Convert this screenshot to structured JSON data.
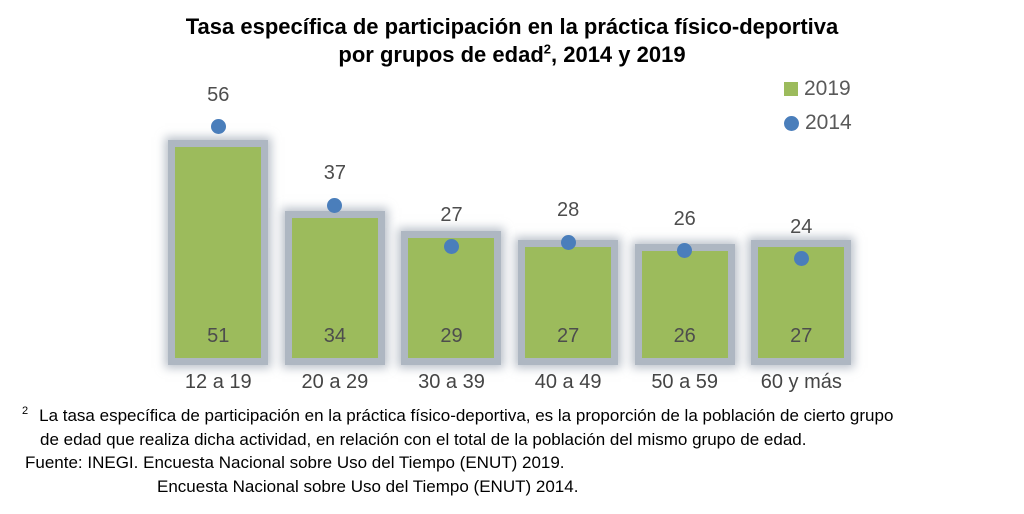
{
  "title": {
    "line1": "Tasa específica de participación en la práctica físico-deportiva",
    "line2_prefix": "por grupos de edad",
    "superscript": "2",
    "line2_suffix": ", 2014 y 2019"
  },
  "legend": {
    "items": [
      {
        "label": "2019",
        "marker": "green-square"
      },
      {
        "label": "2014",
        "marker": "blue-circle"
      }
    ]
  },
  "chart_data": {
    "type": "bar",
    "categories": [
      "12 a 19",
      "20 a 29",
      "30 a 39",
      "40 a 49",
      "50 a 59",
      "60 y más"
    ],
    "series": [
      {
        "name": "2019",
        "type": "bar",
        "color": "#9CBB5C",
        "values": [
          51,
          34,
          29,
          27,
          26,
          27
        ],
        "data_label_position": "inside-base"
      },
      {
        "name": "2014",
        "type": "scatter",
        "color": "#4A7EBB",
        "values": [
          56,
          37,
          27,
          28,
          26,
          24
        ],
        "data_label_position": "above"
      }
    ],
    "title": "Tasa específica de participación en la práctica físico-deportiva por grupos de edad², 2014 y 2019",
    "xlabel": "",
    "ylabel": "",
    "ylim": [
      0,
      66
    ],
    "grid": false,
    "legend_position": "top-right",
    "bar_effect": "gray-glow-border"
  },
  "footnote": {
    "marker": "2",
    "line1": "La tasa específica de participación en la práctica físico-deportiva, es la proporción de la población de cierto grupo",
    "line2": "de edad que realiza dicha actividad, en relación con el total de la población del mismo grupo de edad."
  },
  "source": {
    "line1": "Fuente: INEGI. Encuesta Nacional sobre Uso del Tiempo (ENUT) 2019.",
    "line2": "Encuesta Nacional sobre Uso del Tiempo (ENUT) 2014."
  }
}
